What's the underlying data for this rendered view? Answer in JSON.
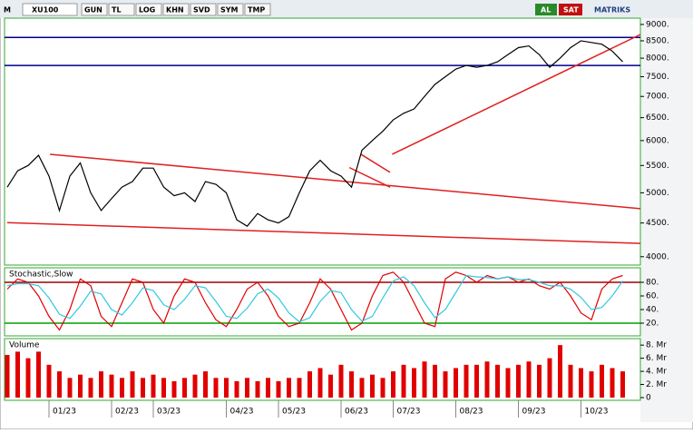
{
  "toolbar": {
    "logo": "M",
    "symbol": "XU100",
    "buttons": [
      "GUN",
      "TL",
      "LOG",
      "KHN",
      "SVD",
      "SYM",
      "TMP"
    ],
    "buy": "AL",
    "sell": "SAT",
    "brand": "MATRIKS"
  },
  "chart_data": [
    {
      "type": "line",
      "log_scale": true,
      "color": "#000000",
      "categories": [
        null,
        null,
        null,
        null,
        "01/23",
        null,
        null,
        null,
        null,
        null,
        "02/23",
        null,
        null,
        null,
        "03/23",
        null,
        null,
        null,
        null,
        null,
        null,
        "04/23",
        null,
        null,
        null,
        null,
        "05/23",
        null,
        null,
        null,
        null,
        null,
        "06/23",
        null,
        null,
        null,
        null,
        "07/23",
        null,
        null,
        null,
        null,
        null,
        "08/23",
        null,
        null,
        null,
        null,
        null,
        "09/23",
        null,
        null,
        null,
        null,
        null,
        "10/23",
        null,
        null,
        null,
        null
      ],
      "values": [
        5100,
        5400,
        5500,
        5700,
        5300,
        4700,
        5300,
        5550,
        5000,
        4700,
        4900,
        5100,
        5200,
        5450,
        5450,
        5100,
        4950,
        5000,
        4850,
        5200,
        5150,
        5000,
        4550,
        4450,
        4650,
        4550,
        4500,
        4600,
        5000,
        5400,
        5600,
        5400,
        5300,
        5100,
        5800,
        6000,
        6200,
        6450,
        6600,
        6700,
        7000,
        7300,
        7500,
        7700,
        7800,
        7750,
        7800,
        7900,
        8100,
        8300,
        8350,
        8100,
        7750,
        8000,
        8300,
        8500,
        8450,
        8400,
        8200,
        7900
      ],
      "ylim": [
        3885,
        9200
      ],
      "yticks": [
        {
          "value": 9000,
          "label": "9000."
        },
        {
          "value": 8500,
          "label": "8500."
        },
        {
          "value": 8000,
          "label": "8000."
        },
        {
          "value": 7500,
          "label": "7500."
        },
        {
          "value": 7000,
          "label": "7000."
        },
        {
          "value": 6500,
          "label": "6500."
        },
        {
          "value": 6000,
          "label": "6000."
        },
        {
          "value": 5500,
          "label": "5500."
        },
        {
          "value": 5000,
          "label": "5000."
        },
        {
          "value": 4500,
          "label": "4500."
        },
        {
          "value": 4000,
          "label": "4000."
        }
      ],
      "hlines": [
        8600,
        7800
      ],
      "hline_color": "#00008b",
      "trendlines": [
        {
          "x": [
            4.1,
            60.7
          ],
          "y": [
            5720,
            4730
          ]
        },
        {
          "x": [
            0,
            60.7
          ],
          "y": [
            4505,
            4190
          ]
        },
        {
          "x": [
            36.9,
            60.7
          ],
          "y": [
            5720,
            8690
          ]
        },
        {
          "x": [
            33.9,
            36.7
          ],
          "y": [
            5720,
            5370
          ]
        },
        {
          "x": [
            32.8,
            36.7
          ],
          "y": [
            5460,
            5100
          ]
        }
      ],
      "trend_color": "#e02020"
    },
    {
      "type": "line",
      "title": "Stochastic,Slow",
      "series": [
        {
          "color": "#e00000",
          "values": [
            70,
            85,
            80,
            60,
            30,
            10,
            40,
            85,
            75,
            30,
            15,
            50,
            85,
            80,
            40,
            20,
            60,
            85,
            80,
            50,
            25,
            15,
            40,
            70,
            80,
            60,
            30,
            15,
            20,
            50,
            85,
            70,
            40,
            10,
            20,
            60,
            90,
            95,
            80,
            50,
            20,
            15,
            85,
            95,
            90,
            80,
            90,
            85,
            88,
            80,
            85,
            75,
            70,
            80,
            60,
            35,
            25,
            70,
            85,
            90
          ]
        },
        {
          "color": "#30c8e0",
          "values": [
            75,
            78,
            78,
            75,
            57,
            33,
            27,
            45,
            67,
            63,
            40,
            32,
            50,
            72,
            68,
            47,
            40,
            55,
            75,
            72,
            52,
            30,
            27,
            42,
            63,
            70,
            57,
            35,
            22,
            28,
            52,
            68,
            65,
            40,
            23,
            30,
            57,
            82,
            88,
            75,
            50,
            28,
            40,
            65,
            90,
            88,
            87,
            85,
            88,
            84,
            84,
            80,
            75,
            75,
            70,
            58,
            40,
            43,
            60,
            82
          ]
        }
      ],
      "ylim": [
        0,
        100
      ],
      "yticks": [
        {
          "value": 80,
          "label": "80."
        },
        {
          "value": 60,
          "label": "60."
        },
        {
          "value": 40,
          "label": "40."
        },
        {
          "value": 20,
          "label": "20."
        }
      ],
      "hlines": [
        80,
        20
      ],
      "hline_colors": [
        "#a00000",
        "#00a000"
      ]
    },
    {
      "type": "bar",
      "title": "Volume",
      "color": "#e00000",
      "values": [
        6.5,
        7,
        6,
        7,
        5,
        4,
        3,
        3.5,
        3,
        4,
        3.5,
        3,
        4,
        3,
        3.5,
        3,
        2.5,
        3,
        3.5,
        4,
        3,
        3,
        2.5,
        3,
        2.5,
        3,
        2.5,
        3,
        3,
        4,
        4.5,
        3.5,
        5,
        4,
        3,
        3.5,
        3,
        4,
        5,
        4.5,
        5.5,
        5,
        4,
        4.5,
        5,
        5,
        5.5,
        5,
        4.5,
        5,
        5.5,
        5,
        6,
        8,
        5,
        4.5,
        4,
        5,
        4.5,
        4
      ],
      "ylim": [
        0,
        8.3
      ],
      "yticks": [
        {
          "value": 8,
          "label": "8. Mr"
        },
        {
          "value": 6,
          "label": "6. Mr"
        },
        {
          "value": 4,
          "label": "4. Mr"
        },
        {
          "value": 2,
          "label": "2. Mr"
        },
        {
          "value": 0,
          "label": "0"
        }
      ]
    }
  ]
}
